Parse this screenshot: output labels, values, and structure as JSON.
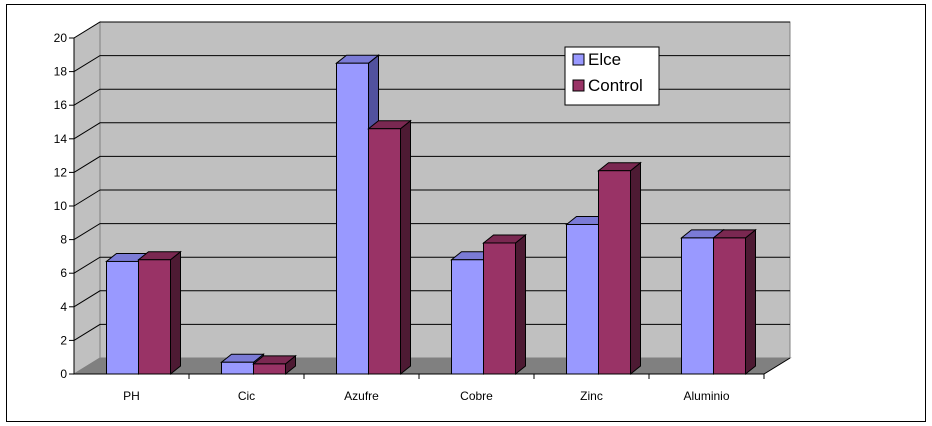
{
  "chart_data": {
    "type": "bar",
    "categories": [
      "PH",
      "Cic",
      "Azufre",
      "Cobre",
      "Zinc",
      "Aluminio"
    ],
    "series": [
      {
        "name": "Elce",
        "values": [
          6.7,
          0.7,
          18.5,
          6.8,
          8.9,
          8.1
        ]
      },
      {
        "name": "Control",
        "values": [
          6.8,
          0.6,
          14.6,
          7.8,
          12.1,
          8.1
        ]
      }
    ],
    "ylim": [
      0,
      20
    ],
    "yticks": [
      0,
      2,
      4,
      6,
      8,
      10,
      12,
      14,
      16,
      18,
      20
    ],
    "grid": true,
    "legend_position": "top-right",
    "three_d": true
  },
  "colors": {
    "Elce": {
      "front": "#9999ff",
      "top": "#7b7bd6",
      "side": "#51519e"
    },
    "Control": {
      "front": "#993366",
      "top": "#7a2851",
      "side": "#4d1a33"
    },
    "wall": "#c0c0c0",
    "floor": "#808080",
    "grid": "#000000"
  }
}
